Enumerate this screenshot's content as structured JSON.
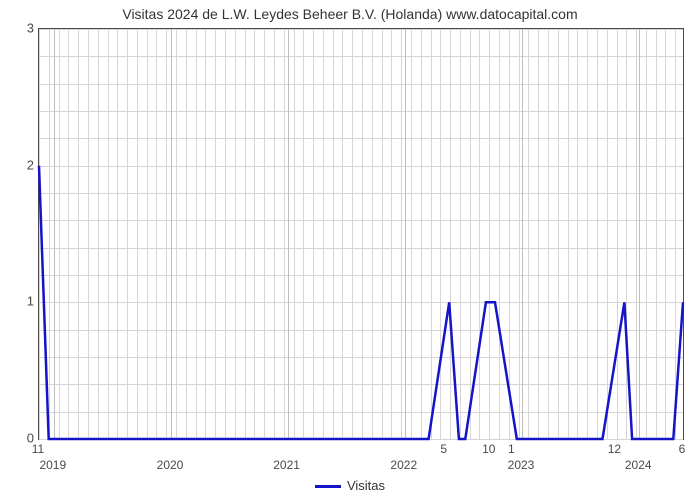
{
  "chart": {
    "type": "line",
    "title": "Visitas 2024 de L.W. Leydes Beheer B.V. (Holanda) www.datocapital.com",
    "title_fontsize": 14,
    "title_color": "#333333",
    "background_color": "#ffffff",
    "plot_border_color": "#4a4a4a",
    "grid_color": "#d6d6d6",
    "axis_label_color": "#4a4a4a",
    "axis_label_fontsize": 13,
    "series": {
      "name": "Visitas",
      "color": "#1414c8",
      "line_width": 2.5,
      "x": [
        0,
        0.015,
        0.03,
        0.605,
        0.637,
        0.652,
        0.662,
        0.694,
        0.708,
        0.742,
        0.757,
        0.767,
        0.875,
        0.909,
        0.921,
        0.985,
        1.0
      ],
      "y": [
        2,
        0,
        0,
        0,
        1,
        0,
        0,
        1,
        1,
        0,
        0,
        0,
        0,
        1,
        0,
        0,
        1
      ]
    },
    "y_axis": {
      "min": 0,
      "max": 3,
      "ticks": [
        0,
        1,
        2,
        3
      ],
      "minor_step": 0.2
    },
    "x_axis": {
      "day_labels": [
        {
          "pos": 0.0,
          "text": "11"
        },
        {
          "pos": 0.63,
          "text": "5"
        },
        {
          "pos": 0.7,
          "text": "10"
        },
        {
          "pos": 0.735,
          "text": "1"
        },
        {
          "pos": 0.895,
          "text": "12"
        },
        {
          "pos": 1.0,
          "text": "6"
        }
      ],
      "year_labels": [
        {
          "pos": 0.023,
          "text": "2019"
        },
        {
          "pos": 0.205,
          "text": "2020"
        },
        {
          "pos": 0.386,
          "text": "2021"
        },
        {
          "pos": 0.568,
          "text": "2022"
        },
        {
          "pos": 0.75,
          "text": "2023"
        },
        {
          "pos": 0.932,
          "text": "2024"
        }
      ],
      "major_gridlines": [
        0.023,
        0.205,
        0.386,
        0.568,
        0.75,
        0.932
      ],
      "minor_step": 0.0152
    },
    "legend": {
      "label": "Visitas",
      "swatch_color": "#1414c8"
    }
  }
}
